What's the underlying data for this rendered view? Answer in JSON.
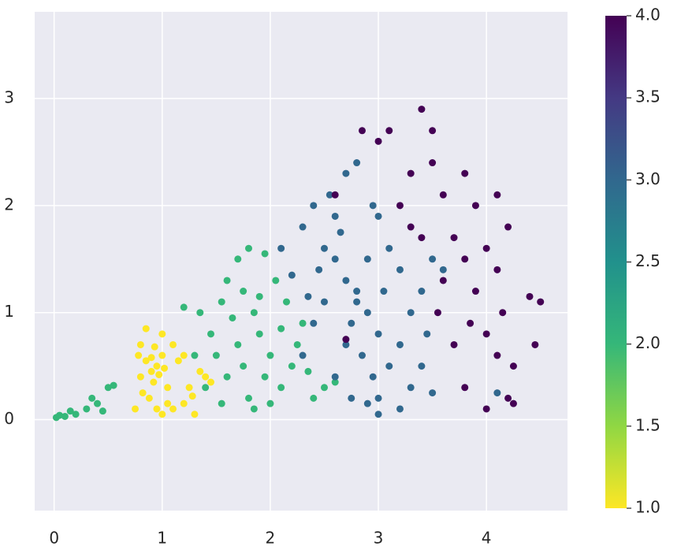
{
  "chart_data": {
    "type": "scatter",
    "x": [
      0.8,
      0.85,
      0.9,
      0.95,
      1.0,
      0.92,
      1.05,
      0.88,
      1.1,
      0.95,
      1.0,
      1.2,
      1.3,
      1.25,
      1.35,
      1.4,
      0.8,
      0.78,
      1.15,
      1.2,
      1.0,
      0.85,
      1.1,
      0.97,
      1.02,
      0.9,
      0.82,
      1.28,
      1.45,
      0.75,
      1.05,
      0.93,
      0.02,
      0.05,
      0.1,
      0.15,
      0.2,
      0.3,
      0.35,
      0.4,
      0.45,
      0.5,
      0.55,
      1.3,
      1.45,
      1.55,
      1.6,
      1.7,
      1.8,
      1.75,
      1.85,
      1.9,
      2.0,
      1.95,
      2.1,
      1.8,
      1.6,
      1.5,
      1.7,
      2.2,
      2.3,
      2.15,
      2.05,
      1.95,
      2.0,
      1.85,
      2.4,
      2.5,
      1.65,
      1.4,
      1.55,
      2.25,
      1.9,
      2.1,
      1.75,
      2.35,
      1.2,
      1.35,
      2.6,
      2.3,
      2.4,
      2.5,
      2.6,
      2.7,
      2.8,
      2.9,
      3.0,
      2.75,
      2.85,
      2.95,
      3.0,
      3.0,
      2.9,
      3.1,
      3.2,
      3.3,
      3.4,
      3.5,
      3.6,
      3.3,
      3.2,
      2.5,
      2.4,
      2.3,
      2.6,
      2.7,
      2.55,
      2.7,
      2.8,
      2.6,
      3.0,
      3.1,
      2.45,
      2.2,
      2.35,
      2.65,
      2.9,
      3.05,
      3.2,
      2.8,
      2.75,
      3.5,
      3.45,
      2.1,
      3.4,
      4.1,
      2.95,
      2.85,
      3.0,
      3.1,
      3.4,
      3.5,
      3.3,
      3.2,
      3.6,
      3.5,
      3.8,
      3.9,
      4.1,
      4.2,
      3.7,
      3.8,
      4.0,
      4.1,
      3.9,
      3.6,
      3.85,
      4.0,
      4.1,
      4.25,
      4.4,
      4.5,
      4.45,
      4.2,
      4.25,
      4.0,
      3.8,
      3.3,
      2.7,
      3.7,
      4.15,
      3.55,
      3.4,
      2.6
    ],
    "y": [
      0.4,
      0.55,
      0.45,
      0.5,
      0.6,
      0.35,
      0.3,
      0.2,
      0.1,
      0.1,
      0.05,
      0.15,
      0.05,
      0.3,
      0.45,
      0.4,
      0.7,
      0.6,
      0.55,
      0.6,
      0.8,
      0.85,
      0.7,
      0.42,
      0.48,
      0.58,
      0.25,
      0.22,
      0.35,
      0.1,
      0.15,
      0.68,
      0.02,
      0.04,
      0.03,
      0.08,
      0.05,
      0.1,
      0.2,
      0.15,
      0.08,
      0.3,
      0.32,
      0.6,
      0.8,
      1.1,
      1.3,
      1.5,
      1.6,
      1.2,
      1.0,
      0.8,
      0.6,
      0.4,
      0.3,
      0.2,
      0.4,
      0.6,
      0.7,
      0.5,
      0.9,
      1.1,
      1.3,
      1.55,
      0.15,
      0.1,
      0.2,
      0.3,
      0.95,
      0.3,
      0.15,
      0.7,
      1.15,
      0.85,
      0.5,
      0.45,
      1.05,
      1.0,
      0.35,
      1.8,
      2.0,
      1.6,
      1.5,
      1.3,
      1.2,
      1.0,
      0.8,
      0.9,
      0.6,
      0.4,
      0.2,
      0.05,
      0.15,
      0.5,
      0.7,
      1.0,
      1.2,
      1.5,
      1.4,
      0.3,
      0.1,
      1.1,
      0.9,
      0.6,
      0.4,
      0.7,
      2.1,
      2.3,
      2.4,
      1.9,
      1.9,
      1.6,
      1.4,
      1.35,
      1.15,
      1.75,
      1.5,
      1.2,
      1.4,
      1.1,
      0.2,
      0.25,
      0.8,
      1.6,
      0.5,
      0.25,
      2.0,
      2.7,
      2.6,
      2.7,
      2.9,
      2.7,
      2.3,
      2.0,
      2.1,
      2.4,
      2.3,
      2.0,
      2.1,
      1.8,
      1.7,
      1.5,
      1.6,
      1.4,
      1.2,
      1.3,
      0.9,
      0.8,
      0.6,
      0.5,
      1.15,
      1.1,
      0.7,
      0.2,
      0.15,
      0.1,
      0.3,
      1.8,
      0.75,
      0.7,
      1.0,
      1.0,
      1.7,
      2.1
    ],
    "c": [
      1,
      1,
      1,
      1,
      1,
      1,
      1,
      1,
      1,
      1,
      1,
      1,
      1,
      1,
      1,
      1,
      1,
      1,
      1,
      1,
      1,
      1,
      1,
      1,
      1,
      1,
      1,
      1,
      1,
      1,
      1,
      1,
      2,
      2,
      2,
      2,
      2,
      2,
      2,
      2,
      2,
      2,
      2,
      2,
      2,
      2,
      2,
      2,
      2,
      2,
      2,
      2,
      2,
      2,
      2,
      2,
      2,
      2,
      2,
      2,
      2,
      2,
      2,
      2,
      2,
      2,
      2,
      2,
      2,
      2,
      2,
      2,
      2,
      2,
      2,
      2,
      2,
      2,
      2,
      3,
      3,
      3,
      3,
      3,
      3,
      3,
      3,
      3,
      3,
      3,
      3,
      3,
      3,
      3,
      3,
      3,
      3,
      3,
      3,
      3,
      3,
      3,
      3,
      3,
      3,
      3,
      3,
      3,
      3,
      3,
      3,
      3,
      3,
      3,
      3,
      3,
      3,
      3,
      3,
      3,
      3,
      3,
      3,
      3,
      3,
      3,
      3,
      4,
      4,
      4,
      4,
      4,
      4,
      4,
      4,
      4,
      4,
      4,
      4,
      4,
      4,
      4,
      4,
      4,
      4,
      4,
      4,
      4,
      4,
      4,
      4,
      4,
      4,
      4,
      4,
      4,
      4,
      4,
      4,
      4,
      4,
      4,
      4,
      4
    ],
    "xlim": [
      -0.18,
      4.75
    ],
    "ylim": [
      -0.85,
      3.81
    ],
    "xticks": [
      0,
      1,
      2,
      3,
      4
    ],
    "yticks": [
      0,
      1,
      2,
      3
    ],
    "grid": true,
    "colormap": [
      "#fde725",
      "#90d743",
      "#35b779",
      "#21918c",
      "#31688e",
      "#443983",
      "#440154"
    ],
    "clim": [
      1,
      4
    ],
    "cticks": [
      {
        "value": 1,
        "label": "1.0"
      },
      {
        "value": 1.5,
        "label": "1.5"
      },
      {
        "value": 2,
        "label": "2.0"
      },
      {
        "value": 2.5,
        "label": "2.5"
      },
      {
        "value": 3,
        "label": "3.0"
      },
      {
        "value": 3.5,
        "label": "3.5"
      },
      {
        "value": 4,
        "label": "4.0"
      }
    ]
  }
}
